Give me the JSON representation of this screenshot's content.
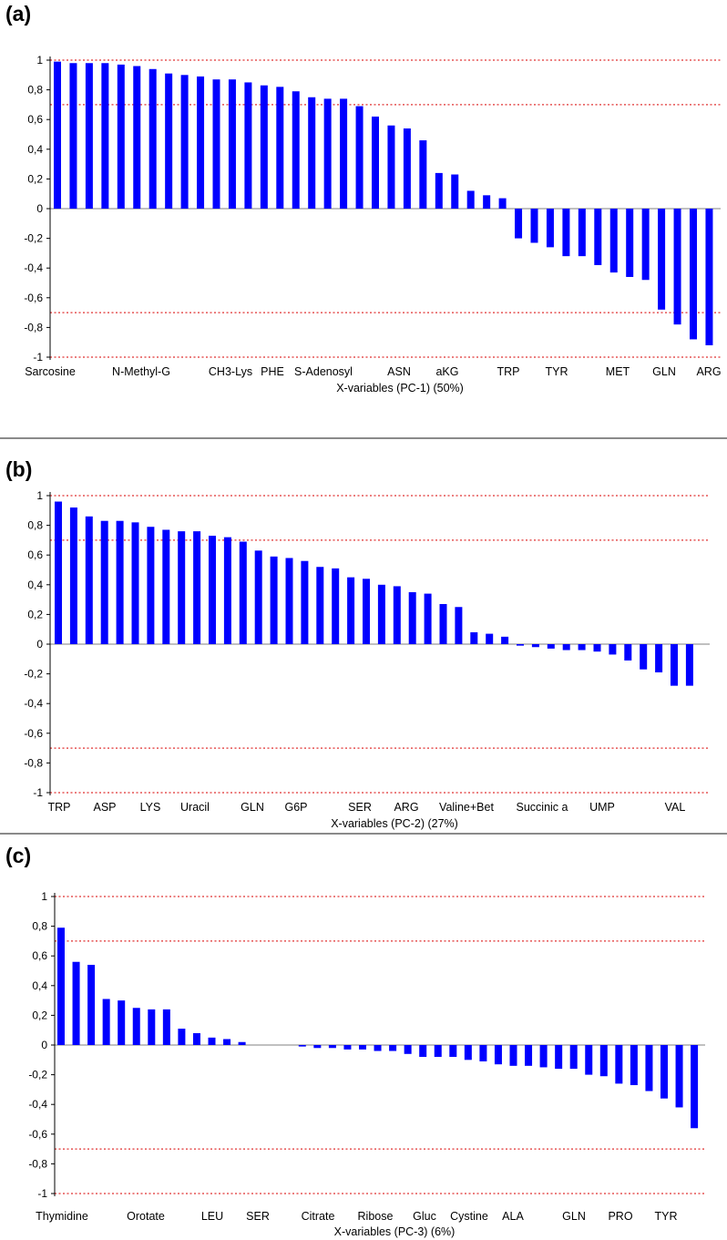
{
  "colors": {
    "bar": "#0000ff",
    "threshold_line": "#e03030",
    "axis": "#000000",
    "zero_line": "#808080",
    "divider": "#8a8a8a"
  },
  "panels": [
    {
      "letter": "(a)"
    },
    {
      "letter": "(b)"
    },
    {
      "letter": "(c)"
    }
  ],
  "chart_data": [
    {
      "type": "bar",
      "xlabel": "X-variables (PC-1) (50%)",
      "ylim": [
        -1,
        1
      ],
      "yticks": [
        "1",
        "0,8",
        "0,6",
        "0,4",
        "0,2",
        "0",
        "-0,2",
        "-0,4",
        "-0,6",
        "-0,8",
        "-1"
      ],
      "reference_lines": [
        1,
        0.7,
        -0.7,
        -1
      ],
      "category_labels": [
        "Sarcosine",
        "N-Methyl-G",
        "CH3-Lys",
        "PHE",
        "S-Adenosyl",
        "ASN",
        "aKG",
        "TRP",
        "TYR",
        "MET",
        "GLN",
        "ARG"
      ],
      "values": [
        0.99,
        0.98,
        0.98,
        0.98,
        0.97,
        0.96,
        0.94,
        0.91,
        0.9,
        0.89,
        0.87,
        0.87,
        0.85,
        0.83,
        0.82,
        0.79,
        0.75,
        0.74,
        0.74,
        0.69,
        0.62,
        0.56,
        0.54,
        0.46,
        0.24,
        0.23,
        0.12,
        0.09,
        0.07,
        -0.2,
        -0.23,
        -0.26,
        -0.32,
        -0.32,
        -0.38,
        -0.43,
        -0.46,
        -0.48,
        -0.68,
        -0.78,
        -0.88,
        -0.92
      ]
    },
    {
      "type": "bar",
      "xlabel": "X-variables (PC-2) (27%)",
      "ylim": [
        -1,
        1
      ],
      "yticks": [
        "1",
        "0,8",
        "0,6",
        "0,4",
        "0,2",
        "0",
        "-0,2",
        "-0,4",
        "-0,6",
        "-0,8",
        "-1"
      ],
      "reference_lines": [
        1,
        0.7,
        -0.7,
        -1
      ],
      "category_labels": [
        "TRP",
        "ASP",
        "LYS",
        "Uracil",
        "GLN",
        "G6P",
        "SER",
        "ARG",
        "Valine+Bet",
        "Succinic a",
        "UMP",
        "VAL"
      ],
      "values": [
        0.96,
        0.92,
        0.86,
        0.83,
        0.83,
        0.82,
        0.79,
        0.77,
        0.76,
        0.76,
        0.73,
        0.72,
        0.69,
        0.63,
        0.59,
        0.58,
        0.56,
        0.52,
        0.51,
        0.45,
        0.44,
        0.4,
        0.39,
        0.35,
        0.34,
        0.27,
        0.25,
        0.08,
        0.07,
        0.05,
        -0.01,
        -0.02,
        -0.03,
        -0.04,
        -0.04,
        -0.05,
        -0.07,
        -0.11,
        -0.17,
        -0.19,
        -0.28,
        -0.28
      ]
    },
    {
      "type": "bar",
      "xlabel": "X-variables (PC-3) (6%)",
      "ylim": [
        -1,
        1
      ],
      "yticks": [
        "1",
        "0,8",
        "0,6",
        "0,4",
        "0,2",
        "0",
        "-0,2",
        "-0,4",
        "-0,6",
        "-0,8",
        "-1"
      ],
      "reference_lines": [
        1,
        0.7,
        -0.7,
        -1
      ],
      "category_labels": [
        "Thymidine",
        "Orotate",
        "LEU",
        "SER",
        "Citrate",
        "Ribose",
        "Gluc",
        "Cystine",
        "ALA",
        "GLN",
        "PRO",
        "TYR"
      ],
      "values": [
        0.79,
        0.56,
        0.54,
        0.31,
        0.3,
        0.25,
        0.24,
        0.24,
        0.11,
        0.08,
        0.05,
        0.04,
        0.02,
        0.0,
        0.0,
        0.0,
        -0.01,
        -0.02,
        -0.02,
        -0.03,
        -0.03,
        -0.04,
        -0.04,
        -0.06,
        -0.08,
        -0.08,
        -0.08,
        -0.1,
        -0.11,
        -0.13,
        -0.14,
        -0.14,
        -0.15,
        -0.16,
        -0.16,
        -0.2,
        -0.21,
        -0.26,
        -0.27,
        -0.31,
        -0.36,
        -0.42,
        -0.56
      ]
    }
  ]
}
